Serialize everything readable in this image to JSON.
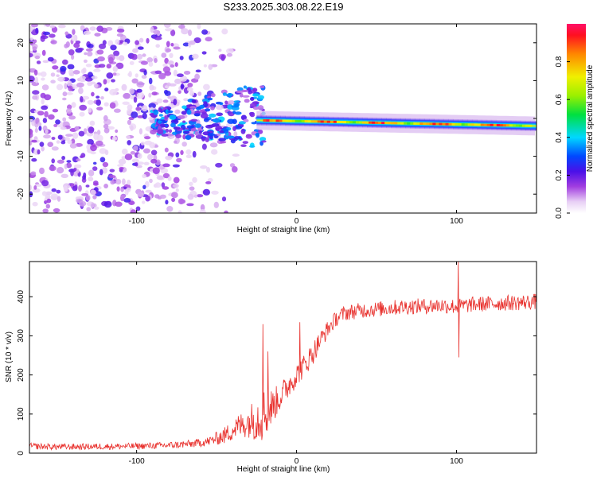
{
  "figure_title": "S233.2025.303.08.22.E19",
  "chart_data": [
    {
      "type": "heatmap",
      "title": "S233.2025.303.08.22.E19",
      "xlabel": "Height of straight line (km)",
      "ylabel": "Frequency (Hz)",
      "xlim": [
        -167,
        150
      ],
      "ylim": [
        -25,
        25
      ],
      "x_ticks": [
        -100,
        0,
        100
      ],
      "y_ticks": [
        -20,
        -10,
        0,
        10,
        20
      ],
      "colorbar": {
        "label": "Normalized spectral amplitude",
        "range": [
          0.0,
          1.0
        ],
        "ticks": [
          0.0,
          0.2,
          0.4,
          0.6,
          0.8
        ]
      },
      "features": [
        {
          "name": "noise-region",
          "x_range": [
            -167,
            -60
          ],
          "freq_range": [
            -25,
            25
          ],
          "amplitude": [
            0.05,
            0.25
          ]
        },
        {
          "name": "transition-region",
          "x_range": [
            -90,
            -20
          ],
          "freq_range": [
            -8,
            13
          ],
          "amplitude": [
            0.1,
            0.4
          ]
        },
        {
          "name": "signal-band",
          "x_range": [
            -25,
            150
          ],
          "freq_center_start": -0.5,
          "freq_center_end": -2.0,
          "bandwidth_hz": 2.5,
          "peak_amplitude": 1.0
        }
      ]
    },
    {
      "type": "line",
      "title": "",
      "xlabel": "Height of straight line (km)",
      "ylabel": "SNR (10 * v/v)",
      "xlim": [
        -167,
        150
      ],
      "ylim": [
        0,
        490
      ],
      "x_ticks": [
        -100,
        0,
        100
      ],
      "y_ticks": [
        0,
        100,
        200,
        300,
        400
      ],
      "series": [
        {
          "name": "SNR",
          "color": "#e8302c",
          "x": [
            -167,
            -150,
            -120,
            -100,
            -80,
            -65,
            -55,
            -45,
            -38,
            -30,
            -25,
            -20,
            -15,
            -10,
            -5,
            0,
            5,
            10,
            15,
            20,
            25,
            30,
            40,
            50,
            60,
            70,
            80,
            90,
            100,
            110,
            120,
            130,
            140,
            150
          ],
          "mean": [
            18,
            16,
            17,
            18,
            20,
            24,
            30,
            45,
            65,
            80,
            90,
            100,
            120,
            145,
            175,
            200,
            225,
            255,
            290,
            320,
            345,
            358,
            365,
            368,
            372,
            375,
            376,
            378,
            375,
            380,
            382,
            384,
            385,
            388
          ],
          "noise_amplitude": [
            8,
            8,
            8,
            8,
            9,
            10,
            12,
            22,
            30,
            40,
            60,
            70,
            45,
            35,
            35,
            30,
            30,
            30,
            25,
            22,
            20,
            20,
            20,
            20,
            20,
            20,
            20,
            20,
            20,
            20,
            20,
            20,
            20,
            20
          ],
          "spikes": [
            {
              "x": -21,
              "y": 330
            },
            {
              "x": -18,
              "y": 260
            },
            {
              "x": 2,
              "y": 335
            },
            {
              "x": 101,
              "y": 495
            },
            {
              "x": 101.5,
              "y": 245
            }
          ]
        }
      ]
    }
  ]
}
